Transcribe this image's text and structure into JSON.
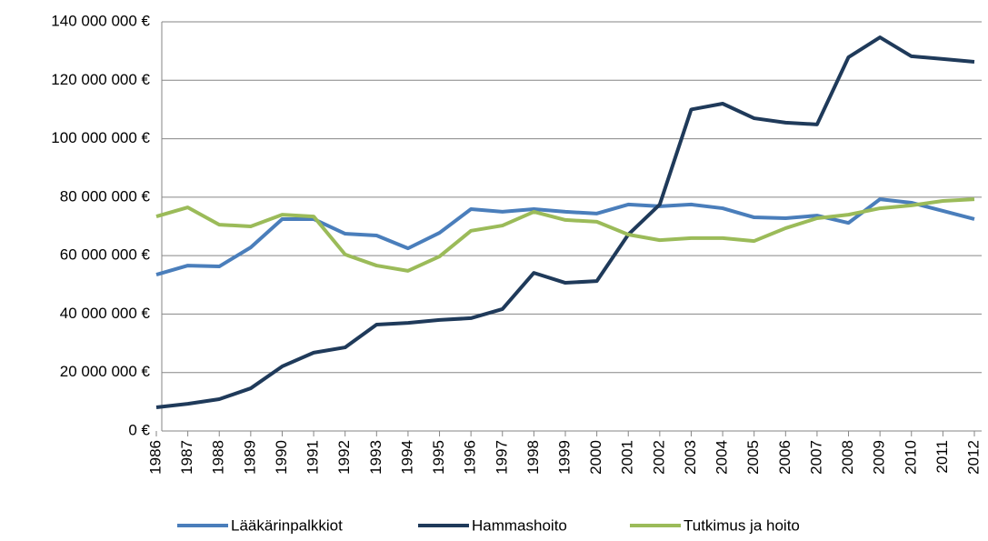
{
  "chart_data": {
    "type": "line",
    "categories": [
      "1986",
      "1987",
      "1988",
      "1989",
      "1990",
      "1991",
      "1992",
      "1993",
      "1994",
      "1995",
      "1996",
      "1997",
      "1998",
      "1999",
      "2000",
      "2001",
      "2002",
      "2003",
      "2004",
      "2005",
      "2006",
      "2007",
      "2008",
      "2009",
      "2010",
      "2011",
      "2012"
    ],
    "series": [
      {
        "name": "Lääkärinpalkkiot",
        "color": "#4a7ebb",
        "values": [
          53500000,
          56600000,
          56300000,
          62800000,
          72500000,
          72500000,
          67500000,
          66900000,
          62500000,
          67800000,
          75900000,
          75000000,
          75900000,
          75000000,
          74400000,
          77500000,
          76900000,
          77500000,
          76200000,
          73100000,
          72800000,
          73700000,
          71200000,
          79300000,
          78100000,
          75300000,
          72500000
        ]
      },
      {
        "name": "Hammashoito",
        "color": "#1f3a5a",
        "values": [
          8100000,
          9300000,
          10900000,
          14600000,
          22100000,
          26800000,
          28600000,
          36400000,
          37000000,
          38000000,
          38600000,
          41700000,
          54100000,
          50700000,
          51300000,
          67200000,
          77500000,
          110000000,
          112000000,
          107000000,
          105500000,
          104900000,
          127900000,
          134700000,
          128200000,
          127300000,
          126300000
        ]
      },
      {
        "name": "Tutkimus ja hoito",
        "color": "#9bbb59",
        "values": [
          73400000,
          76500000,
          70600000,
          70000000,
          74000000,
          73400000,
          60400000,
          56600000,
          54800000,
          59700000,
          68500000,
          70300000,
          75000000,
          72200000,
          71600000,
          67200000,
          65300000,
          66000000,
          66000000,
          65000000,
          69400000,
          72800000,
          74000000,
          76200000,
          77200000,
          78700000,
          79300000
        ]
      }
    ],
    "ylim": [
      0,
      140000000
    ],
    "yticks": [
      {
        "value": 0,
        "label": "0 €"
      },
      {
        "value": 20000000,
        "label": "20 000 000 €"
      },
      {
        "value": 40000000,
        "label": "40 000 000 €"
      },
      {
        "value": 60000000,
        "label": "60 000 000 €"
      },
      {
        "value": 80000000,
        "label": "80 000 000 €"
      },
      {
        "value": 100000000,
        "label": "100 000 000 €"
      },
      {
        "value": 120000000,
        "label": "120 000 000 €"
      },
      {
        "value": 140000000,
        "label": "140 000 000 €"
      }
    ],
    "grid": true,
    "legend": "bottom"
  }
}
